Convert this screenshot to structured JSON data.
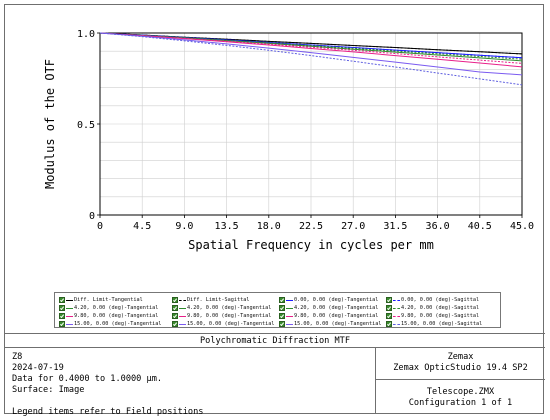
{
  "chart_data": {
    "type": "line",
    "xlabel": "Spatial Frequency in cycles per mm",
    "ylabel": "Modulus of the OTF",
    "xlim": [
      0,
      45
    ],
    "ylim": [
      0,
      1
    ],
    "x_ticks": [
      "0",
      "4.5",
      "9.0",
      "13.5",
      "18.0",
      "22.5",
      "27.0",
      "31.5",
      "36.0",
      "40.5",
      "45.0"
    ],
    "y_ticks": [
      {
        "value": 0,
        "label": "0"
      },
      {
        "value": 0.5,
        "label": "0.5"
      },
      {
        "value": 1,
        "label": "1.0"
      }
    ],
    "x": [
      0,
      4.5,
      9,
      13.5,
      18,
      22.5,
      27,
      31.5,
      36,
      40.5,
      45
    ],
    "series": [
      {
        "name": "Diff. Limit-Tangential",
        "color": "#000000",
        "dash": false,
        "values": [
          1.0,
          0.989,
          0.977,
          0.966,
          0.954,
          0.943,
          0.931,
          0.92,
          0.908,
          0.897,
          0.885
        ]
      },
      {
        "name": "Diff. Limit-Sagittal",
        "color": "#000000",
        "dash": true,
        "values": [
          1.0,
          0.989,
          0.977,
          0.966,
          0.954,
          0.943,
          0.931,
          0.92,
          0.908,
          0.897,
          0.885
        ]
      },
      {
        "name": "0.00, 0.00 (deg)-Tangential",
        "color": "#1a1aff",
        "dash": false,
        "values": [
          1.0,
          0.988,
          0.975,
          0.962,
          0.948,
          0.934,
          0.92,
          0.906,
          0.892,
          0.878,
          0.864
        ]
      },
      {
        "name": "0.00, 0.00 (deg)-Sagittal",
        "color": "#1a1aff",
        "dash": true,
        "values": [
          1.0,
          0.988,
          0.975,
          0.962,
          0.948,
          0.934,
          0.92,
          0.906,
          0.892,
          0.878,
          0.864
        ]
      },
      {
        "name": "4.20, 0.00 (deg)-Tangential",
        "color": "#2e8b2e",
        "dash": false,
        "values": [
          1.0,
          0.987,
          0.973,
          0.958,
          0.943,
          0.927,
          0.911,
          0.895,
          0.879,
          0.863,
          0.847
        ]
      },
      {
        "name": "4.20, 0.00 (deg)-Sagittal",
        "color": "#2e8b2e",
        "dash": true,
        "values": [
          1.0,
          0.987,
          0.974,
          0.96,
          0.946,
          0.931,
          0.916,
          0.901,
          0.886,
          0.871,
          0.856
        ]
      },
      {
        "name": "9.80, 0.00 (deg)-Tangential",
        "color": "#e8208a",
        "dash": false,
        "values": [
          1.0,
          0.985,
          0.969,
          0.952,
          0.934,
          0.915,
          0.896,
          0.876,
          0.856,
          0.835,
          0.814
        ]
      },
      {
        "name": "9.80, 0.00 (deg)-Sagittal",
        "color": "#e8208a",
        "dash": true,
        "values": [
          1.0,
          0.986,
          0.971,
          0.955,
          0.939,
          0.922,
          0.905,
          0.887,
          0.869,
          0.851,
          0.833
        ]
      },
      {
        "name": "15.00, 0.00 (deg)-Tangential",
        "color": "#7a5af0",
        "dash": false,
        "values": [
          1.0,
          0.982,
          0.962,
          0.94,
          0.917,
          0.892,
          0.866,
          0.84,
          0.813,
          0.786,
          0.77
        ]
      },
      {
        "name": "15.00, 0.00 (deg)-Sagittal",
        "color": "#6060e0",
        "dash": true,
        "values": [
          1.0,
          0.98,
          0.957,
          0.932,
          0.905,
          0.876,
          0.845,
          0.813,
          0.78,
          0.748,
          0.715
        ]
      }
    ]
  },
  "legend": {
    "items": [
      {
        "label": "Diff. Limit-Tangential",
        "color": "#000000",
        "dash": false
      },
      {
        "label": "Diff. Limit-Sagittal",
        "color": "#000000",
        "dash": true
      },
      {
        "label": "0.00, 0.00 (deg)-Tangential",
        "color": "#1a1aff",
        "dash": false
      },
      {
        "label": "0.00, 0.00 (deg)-Sagittal",
        "color": "#1a1aff",
        "dash": true
      },
      {
        "label": "4.20, 0.00 (deg)-Tangential",
        "color": "#2e8b2e",
        "dash": false
      },
      {
        "label": "4.20, 0.00 (deg)-Sagittal",
        "color": "#2e8b2e",
        "dash": true
      },
      {
        "label": "9.80, 0.00 (deg)-Tangential",
        "color": "#e8208a",
        "dash": false
      },
      {
        "label": "9.80, 0.00 (deg)-Sagittal",
        "color": "#e8208a",
        "dash": true
      },
      {
        "label": "15.00, 0.00 (deg)-Tangential",
        "color": "#7a5af0",
        "dash": false
      },
      {
        "label": "15.00, 0.00 (deg)-Sagittal",
        "color": "#6060e0",
        "dash": true
      }
    ]
  },
  "footer": {
    "title": "Polychromatic Diffraction MTF",
    "left_lines": [
      "Z8",
      "2024-07-19",
      "Data for 0.4000 to 1.0000 µm.",
      "Surface: Image"
    ],
    "legend_note": "Legend items refer to Field positions",
    "company": "Zemax",
    "product": "Zemax OpticStudio 19.4 SP2",
    "file": "Telescope.ZMX",
    "configuration": "Configuration 1 of 1"
  }
}
